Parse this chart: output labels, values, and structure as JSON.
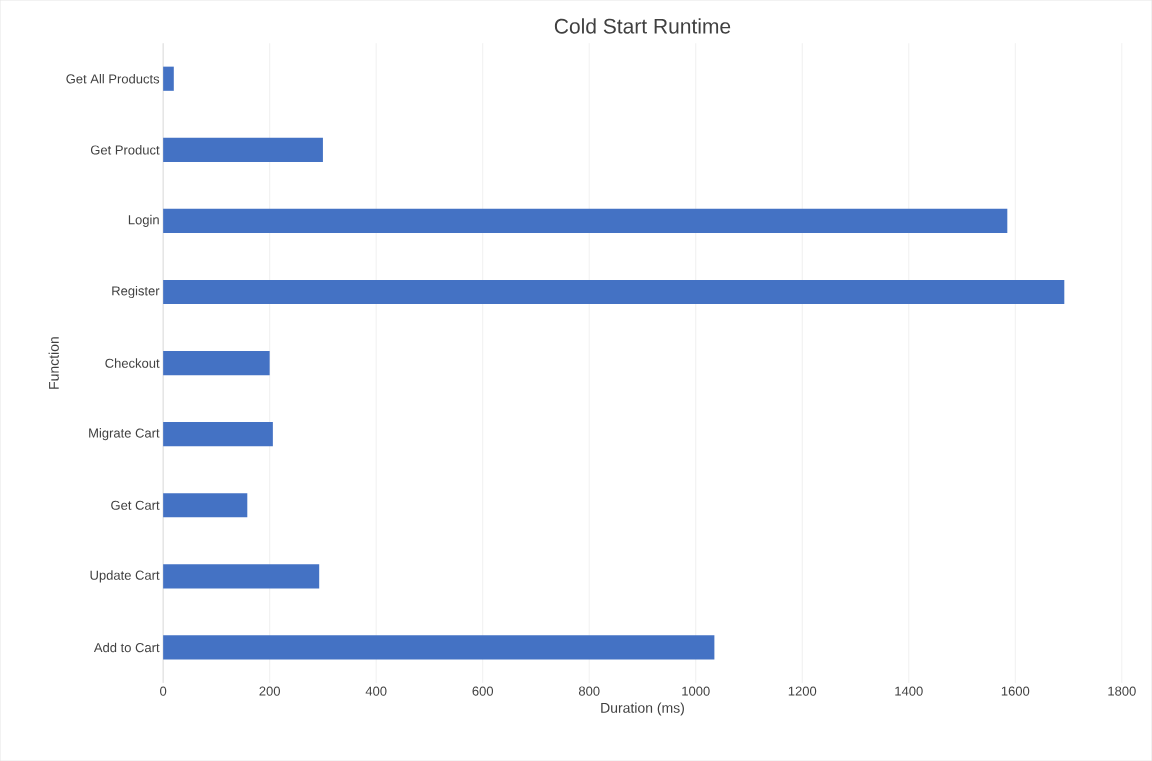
{
  "chart_data": {
    "type": "bar",
    "orientation": "horizontal",
    "title": "Cold Start Runtime",
    "xlabel": "Duration (ms)",
    "ylabel": "Function",
    "categories": [
      "Get All Products",
      "Get Product",
      "Login",
      "Register",
      "Checkout",
      "Migrate Cart",
      "Get Cart",
      "Update Cart",
      "Add to Cart"
    ],
    "values": [
      20,
      300,
      1585,
      1692,
      200,
      206,
      158,
      293,
      1035
    ],
    "color": "#4472c4",
    "xlim": [
      0,
      1800
    ],
    "xticks": [
      0,
      200,
      400,
      600,
      800,
      1000,
      1200,
      1400,
      1600,
      1800
    ],
    "grid": "x"
  }
}
